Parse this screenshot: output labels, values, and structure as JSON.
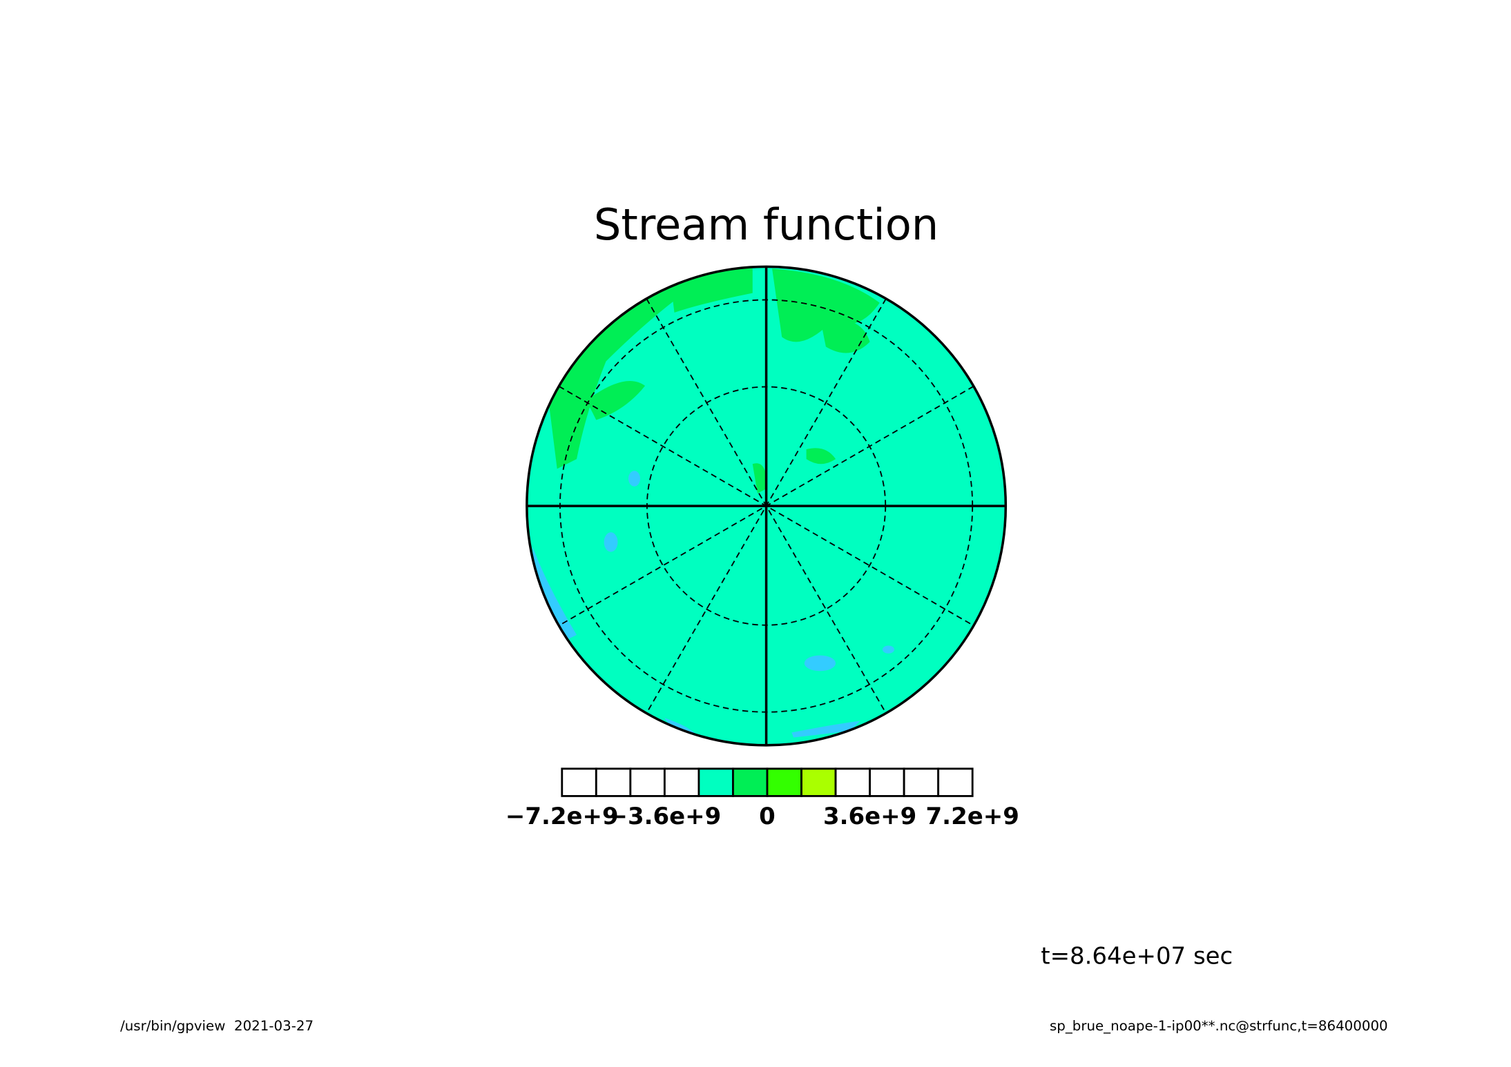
{
  "chart_data": {
    "type": "polar-contour",
    "title": "Stream function",
    "map_color": "#00ffc0",
    "colorbar": {
      "bins": [
        -7200000000,
        -6000000000,
        -4800000000,
        -3600000000,
        -2400000000,
        -1200000000,
        0,
        1200000000,
        2400000000,
        3600000000,
        4800000000,
        6000000000,
        7200000000
      ],
      "colors": [
        "#ffffff",
        "#ffffff",
        "#ffffff",
        "#ffffff",
        "#00ffc0",
        "#00ee55",
        "#33ff00",
        "#aaff00",
        "#ffffff",
        "#ffffff",
        "#ffffff",
        "#ffffff"
      ],
      "xlim": [
        -7200000000,
        7200000000
      ],
      "xticks": [
        {
          "value": -7200000000,
          "label": "−7.2e+9"
        },
        {
          "value": -3600000000,
          "label": "−3.6e+9"
        },
        0,
        {
          "value": 3600000000,
          "label": "3.6e+9"
        },
        {
          "value": 7200000000,
          "label": "7.2e+9"
        }
      ]
    },
    "annotation": "t=8.64e+07 sec"
  },
  "footer": {
    "left": "/usr/bin/gpview  2021-03-27",
    "right": "sp_brue_noape-1-ip00**.nc@strfunc,t=86400000"
  }
}
